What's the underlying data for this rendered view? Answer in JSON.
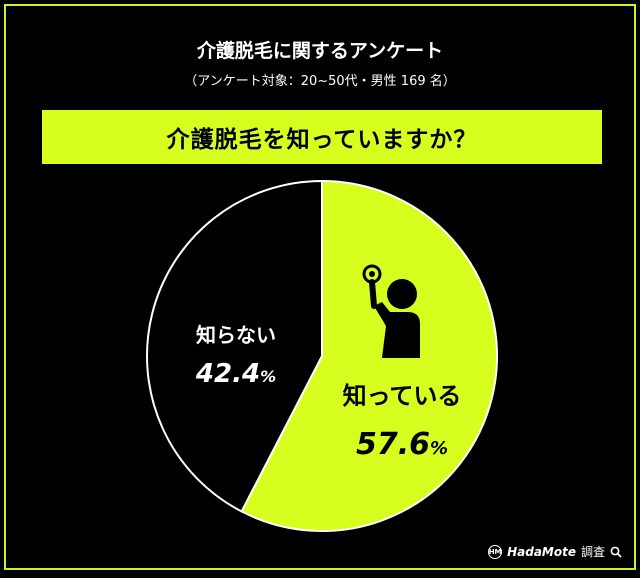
{
  "header": {
    "title": "介護脱毛に関するアンケート",
    "subtitle": "（アンケート対象：20~50代・男性 169 名）"
  },
  "question": {
    "text": "介護脱毛を知っていますか？"
  },
  "chart_data": {
    "type": "pie",
    "labels": [
      "知っている",
      "知らない"
    ],
    "values": [
      57.6,
      42.4
    ],
    "value_labels": [
      "57.6",
      "42.4"
    ],
    "unit": "%",
    "colors": [
      "#d6ff1f",
      "#000000"
    ],
    "label_colors": [
      "#000000",
      "#ffffff"
    ],
    "start": "12 o'clock, clockwise",
    "icon": "person-raising-hand-icon"
  },
  "footer": {
    "brand_name": "HadaMote",
    "brand_suffix": "調査",
    "logo_text": "HM"
  }
}
